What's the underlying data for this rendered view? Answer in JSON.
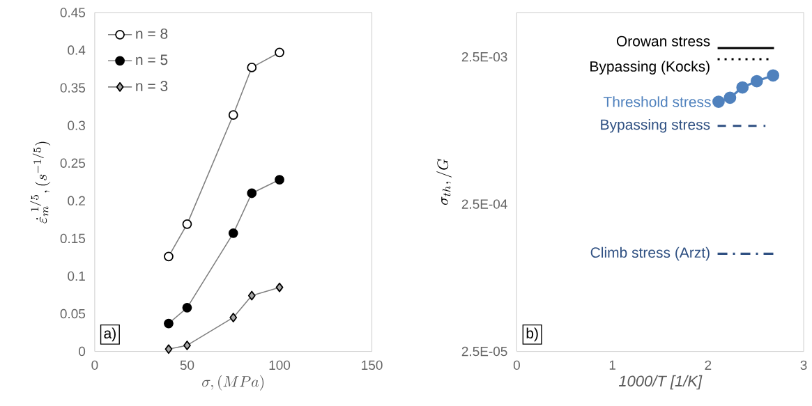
{
  "chart_data": [
    {
      "type": "line",
      "xlabel": "\\sigma,(MPa)",
      "ylabel": "\\dot{\\varepsilon}_m^{\\ 1/5},(s^{-1/5})",
      "x": [
        40,
        50,
        75,
        85,
        100
      ],
      "series": [
        {
          "name": "n = 8",
          "color": "#ffffff",
          "marker": "circle",
          "values": [
            0.126,
            0.169,
            0.314,
            0.377,
            0.397
          ]
        },
        {
          "name": "n = 5",
          "color": "#000000",
          "marker": "circle",
          "values": [
            0.037,
            0.058,
            0.157,
            0.21,
            0.228
          ]
        },
        {
          "name": "n = 3",
          "color": "#a6a6a6",
          "marker": "diamond",
          "values": [
            0.003,
            0.008,
            0.045,
            0.074,
            0.085
          ]
        }
      ],
      "xlim": [
        0,
        150
      ],
      "xticks": [
        0,
        50,
        100,
        150
      ],
      "ylim": [
        0,
        0.45
      ],
      "yticks": [
        0,
        0.05,
        0.1,
        0.15,
        0.2,
        0.25,
        0.3,
        0.35,
        0.4,
        0.45
      ],
      "legend": "top left",
      "grid": false,
      "annotations": [
        "a)"
      ]
    },
    {
      "type": "line",
      "xlabel": "1000/T [1/K]",
      "ylabel": "\\sigma_{th},/G",
      "log": "y",
      "series": [
        {
          "name": "Orowan stress",
          "color": "#000000",
          "line_style": "solid",
          "marker": "none",
          "x": [
            2.1,
            2.69
          ],
          "values": [
            0.00287,
            0.00287
          ]
        },
        {
          "name": "Bypassing (Kocks)",
          "color": "#000000",
          "line_style": "dotted",
          "marker": "none",
          "x": [
            2.1,
            2.66
          ],
          "values": [
            0.00241,
            0.00241
          ]
        },
        {
          "name": "Threshold stress",
          "color": "#4f81bd",
          "line_style": "solid",
          "marker": "circle",
          "x": [
            2.11,
            2.23,
            2.36,
            2.51,
            2.68
          ],
          "values": [
            0.00124,
            0.00132,
            0.00155,
            0.00171,
            0.00187
          ]
        },
        {
          "name": "Bypassing stress",
          "color": "#2f5082",
          "line_style": "dashed",
          "marker": "none",
          "x": [
            2.1,
            2.6
          ],
          "values": [
            0.00085,
            0.00085
          ]
        },
        {
          "name": "Climb stress (Arzt)",
          "color": "#2f5082",
          "line_style": "dashdot",
          "marker": "none",
          "x": [
            2.1,
            2.69
          ],
          "values": [
            0.000115,
            0.000115
          ]
        }
      ],
      "xlim": [
        0,
        3
      ],
      "xticks": [
        0,
        1,
        2,
        3
      ],
      "ylim": [
        2.5e-05,
        0.005
      ],
      "yticks": [
        {
          "value": 2.5e-05,
          "label": "2.5E-05"
        },
        {
          "value": 0.00025,
          "label": "2.5E-04"
        },
        {
          "value": 0.0025,
          "label": "2.5E-03"
        }
      ],
      "legend": false,
      "grid": false,
      "annotations": [
        "b)"
      ]
    }
  ]
}
